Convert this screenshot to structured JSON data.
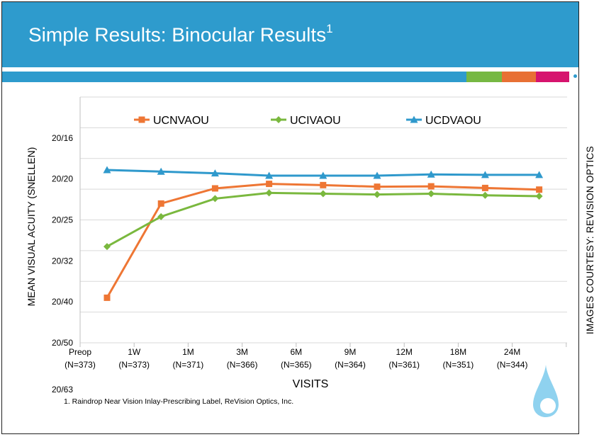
{
  "slide": {
    "title": "Simple Results: Binocular Results",
    "title_superscript": "1",
    "footnote": "1. Raindrop Near Vision Inlay-Prescribing Label, ReVision Optics, Inc.",
    "courtesy": "IMAGES COURTESY: REVISION OPTICS"
  },
  "colors": {
    "header": "#2e9bcd",
    "band_blocks": [
      "#76b843",
      "#e87034",
      "#d6146e"
    ],
    "UCNVAOU": "#ee7634",
    "UCIVAOU": "#7ab83e",
    "UCDVAOU": "#2f99cc"
  },
  "chart_data": {
    "type": "line",
    "xlabel": "VISITS",
    "ylabel": "MEAN VISUAL ACUITY  (SNELLEN)",
    "categories": [
      [
        "Preop",
        "(N=373)"
      ],
      [
        "1W",
        "(N=373)"
      ],
      [
        "1M",
        "(N=371)"
      ],
      [
        "3M",
        "(N=366)"
      ],
      [
        "6M",
        "(N=365)"
      ],
      [
        "9M",
        "(N=364)"
      ],
      [
        "12M",
        "(N=361)"
      ],
      [
        "18M",
        "(N=351)"
      ],
      [
        "24M",
        "(N=344)"
      ]
    ],
    "y_tick_labels": [
      "20/16",
      "20/20",
      "20/25",
      "20/32",
      "20/40",
      "20/50",
      "20/63"
    ],
    "y_scale": "logMAR (Snellen labels), log10 of denominator/20, inverted",
    "ylim_logmar": [
      0.2,
      -0.1
    ],
    "series": [
      {
        "name": "UCNVAOU",
        "marker": "square",
        "values_logmar": [
          0.29,
          0.06,
          0.023,
          0.012,
          0.015,
          0.019,
          0.018,
          0.022,
          0.026
        ]
      },
      {
        "name": "UCIVAOU",
        "marker": "diamond",
        "values_logmar": [
          0.165,
          0.092,
          0.048,
          0.034,
          0.036,
          0.038,
          0.036,
          0.04,
          0.042
        ]
      },
      {
        "name": "UCDVAOU",
        "marker": "triangle",
        "values_logmar": [
          -0.022,
          -0.018,
          -0.014,
          -0.008,
          -0.008,
          -0.008,
          -0.011,
          -0.01,
          -0.01
        ]
      }
    ],
    "grid": true,
    "legend": "top"
  }
}
